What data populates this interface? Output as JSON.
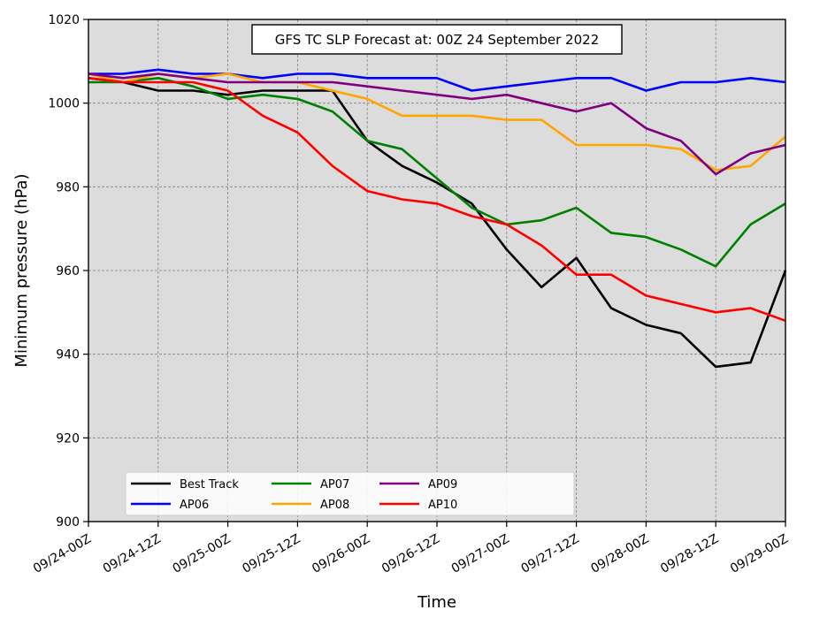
{
  "chart_data": {
    "type": "line",
    "title": "GFS TC SLP Forecast at: 00Z 24 September 2022",
    "xlabel": "Time",
    "ylabel": "Minimum pressure (hPa)",
    "ylim": [
      900,
      1020
    ],
    "yticks": [
      900,
      920,
      940,
      960,
      980,
      1000,
      1020
    ],
    "xtick_labels": [
      "09/24-00Z",
      "09/24-12Z",
      "09/25-00Z",
      "09/25-12Z",
      "09/26-00Z",
      "09/26-12Z",
      "09/27-00Z",
      "09/27-12Z",
      "09/28-00Z",
      "09/28-12Z",
      "09/29-00Z"
    ],
    "x": [
      "09/24-00Z",
      "09/24-06Z",
      "09/24-12Z",
      "09/24-18Z",
      "09/25-00Z",
      "09/25-06Z",
      "09/25-12Z",
      "09/25-18Z",
      "09/26-00Z",
      "09/26-06Z",
      "09/26-12Z",
      "09/26-18Z",
      "09/27-00Z",
      "09/27-06Z",
      "09/27-12Z",
      "09/27-18Z",
      "09/28-00Z",
      "09/28-06Z",
      "09/28-12Z",
      "09/28-18Z",
      "09/29-00Z"
    ],
    "grid": true,
    "legend_position": "lower-left",
    "series": [
      {
        "name": "Best Track",
        "color": "#000000",
        "values": [
          1006,
          1005,
          1003,
          1003,
          1002,
          1003,
          1003,
          1003,
          991,
          985,
          981,
          976,
          965,
          956,
          963,
          951,
          947,
          945,
          937,
          938,
          960
        ]
      },
      {
        "name": "AP06",
        "color": "#0000ff",
        "values": [
          1007,
          1007,
          1008,
          1007,
          1007,
          1006,
          1007,
          1007,
          1006,
          1006,
          1006,
          1003,
          1004,
          1005,
          1006,
          1006,
          1003,
          1005,
          1005,
          1006,
          1005
        ]
      },
      {
        "name": "AP07",
        "color": "#008000",
        "values": [
          1005,
          1005,
          1006,
          1004,
          1001,
          1002,
          1001,
          998,
          991,
          989,
          982,
          975,
          971,
          972,
          975,
          969,
          968,
          965,
          961,
          971,
          976
        ]
      },
      {
        "name": "AP08",
        "color": "#ffa500",
        "values": [
          1007,
          1005,
          1007,
          1006,
          1007,
          1005,
          1005,
          1003,
          1001,
          997,
          997,
          997,
          996,
          996,
          990,
          990,
          990,
          989,
          984,
          985,
          992
        ]
      },
      {
        "name": "AP09",
        "color": "#800080",
        "values": [
          1007,
          1006,
          1007,
          1006,
          1005,
          1005,
          1005,
          1005,
          1004,
          1003,
          1002,
          1001,
          1002,
          1000,
          998,
          1000,
          994,
          991,
          983,
          988,
          990
        ]
      },
      {
        "name": "AP10",
        "color": "#ff0000",
        "values": [
          1006,
          1005,
          1005,
          1005,
          1003,
          997,
          993,
          985,
          979,
          977,
          976,
          973,
          971,
          966,
          959,
          959,
          954,
          952,
          950,
          951,
          948
        ]
      }
    ]
  }
}
